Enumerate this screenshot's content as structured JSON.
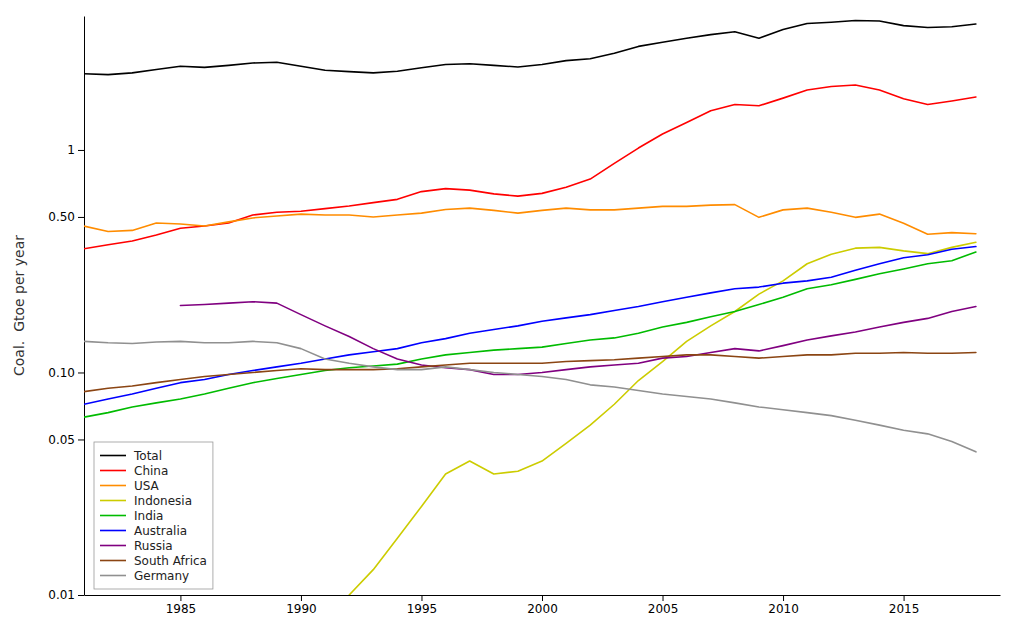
{
  "chart_data": {
    "type": "line",
    "ylabel": "Coal.  Gtoe per year",
    "log": "y",
    "grid": false,
    "legend": "lower left",
    "xlim": [
      1981,
      2019
    ],
    "xticks": [
      1985,
      1990,
      1995,
      2000,
      2005,
      2010,
      2015
    ],
    "ylim": [
      0.01,
      4.0
    ],
    "yticks": [
      0.01,
      0.05,
      {
        "value": 0.1,
        "label": "0.10"
      },
      {
        "value": 0.5,
        "label": "0.50"
      },
      1
    ],
    "x": [
      1981,
      1982,
      1983,
      1984,
      1985,
      1986,
      1987,
      1988,
      1989,
      1990,
      1991,
      1992,
      1993,
      1994,
      1995,
      1996,
      1997,
      1998,
      1999,
      2000,
      2001,
      2002,
      2003,
      2004,
      2005,
      2006,
      2007,
      2008,
      2009,
      2010,
      2011,
      2012,
      2013,
      2014,
      2015,
      2016,
      2017,
      2018
    ],
    "series": [
      {
        "name": "Total",
        "color": "#000000",
        "values": [
          2.2,
          2.18,
          2.22,
          2.3,
          2.38,
          2.35,
          2.4,
          2.46,
          2.48,
          2.38,
          2.28,
          2.25,
          2.22,
          2.26,
          2.34,
          2.42,
          2.44,
          2.4,
          2.36,
          2.42,
          2.52,
          2.57,
          2.72,
          2.92,
          3.05,
          3.18,
          3.3,
          3.4,
          3.18,
          3.48,
          3.7,
          3.75,
          3.82,
          3.8,
          3.62,
          3.55,
          3.58,
          3.68
        ]
      },
      {
        "name": "China",
        "color": "#ff0000",
        "values": [
          0.36,
          0.375,
          0.39,
          0.415,
          0.445,
          0.455,
          0.47,
          0.51,
          0.525,
          0.53,
          0.545,
          0.56,
          0.58,
          0.6,
          0.65,
          0.67,
          0.66,
          0.635,
          0.62,
          0.638,
          0.68,
          0.74,
          0.87,
          1.02,
          1.18,
          1.33,
          1.5,
          1.6,
          1.58,
          1.71,
          1.86,
          1.93,
          1.96,
          1.86,
          1.7,
          1.6,
          1.66,
          1.73
        ]
      },
      {
        "name": "USA",
        "color": "#ff8c00",
        "values": [
          0.455,
          0.43,
          0.435,
          0.47,
          0.465,
          0.455,
          0.475,
          0.495,
          0.505,
          0.515,
          0.51,
          0.51,
          0.5,
          0.51,
          0.52,
          0.54,
          0.548,
          0.535,
          0.52,
          0.535,
          0.548,
          0.538,
          0.538,
          0.548,
          0.558,
          0.558,
          0.565,
          0.568,
          0.498,
          0.538,
          0.548,
          0.525,
          0.498,
          0.515,
          0.468,
          0.418,
          0.425,
          0.42
        ]
      },
      {
        "name": "Indonesia",
        "color": "#cccc00",
        "values": [
          null,
          null,
          null,
          null,
          null,
          null,
          null,
          null,
          null,
          null,
          null,
          0.01,
          0.013,
          0.018,
          0.025,
          0.035,
          0.04,
          0.035,
          0.036,
          0.04,
          0.048,
          0.058,
          0.072,
          0.092,
          0.112,
          0.138,
          0.162,
          0.188,
          0.225,
          0.258,
          0.308,
          0.34,
          0.362,
          0.365,
          0.352,
          0.342,
          0.365,
          0.385
        ]
      },
      {
        "name": "India",
        "color": "#00bb00",
        "values": [
          0.063,
          0.066,
          0.07,
          0.073,
          0.076,
          0.08,
          0.085,
          0.09,
          0.094,
          0.098,
          0.102,
          0.105,
          0.107,
          0.109,
          0.115,
          0.12,
          0.123,
          0.126,
          0.128,
          0.13,
          0.135,
          0.14,
          0.143,
          0.15,
          0.16,
          0.168,
          0.178,
          0.188,
          0.202,
          0.218,
          0.238,
          0.248,
          0.262,
          0.278,
          0.292,
          0.308,
          0.318,
          0.348
        ]
      },
      {
        "name": "Australia",
        "color": "#0000ff",
        "values": [
          0.072,
          0.076,
          0.08,
          0.085,
          0.09,
          0.093,
          0.098,
          0.102,
          0.106,
          0.11,
          0.115,
          0.12,
          0.124,
          0.128,
          0.136,
          0.142,
          0.15,
          0.156,
          0.162,
          0.17,
          0.176,
          0.182,
          0.19,
          0.198,
          0.208,
          0.218,
          0.228,
          0.238,
          0.242,
          0.252,
          0.258,
          0.268,
          0.288,
          0.308,
          0.328,
          0.338,
          0.358,
          0.368
        ]
      },
      {
        "name": "Russia",
        "color": "#800080",
        "values": [
          null,
          null,
          null,
          null,
          0.2,
          0.202,
          0.205,
          0.208,
          0.205,
          0.182,
          0.162,
          0.145,
          0.128,
          0.115,
          0.108,
          0.105,
          0.103,
          0.098,
          0.098,
          0.1,
          0.103,
          0.106,
          0.108,
          0.11,
          0.116,
          0.118,
          0.123,
          0.128,
          0.125,
          0.132,
          0.14,
          0.146,
          0.152,
          0.16,
          0.168,
          0.175,
          0.188,
          0.198
        ]
      },
      {
        "name": "South Africa",
        "color": "#8B4513",
        "values": [
          0.082,
          0.085,
          0.087,
          0.09,
          0.093,
          0.096,
          0.098,
          0.1,
          0.102,
          0.104,
          0.103,
          0.103,
          0.103,
          0.104,
          0.106,
          0.108,
          0.11,
          0.11,
          0.11,
          0.11,
          0.112,
          0.113,
          0.114,
          0.116,
          0.118,
          0.12,
          0.12,
          0.118,
          0.116,
          0.118,
          0.12,
          0.12,
          0.122,
          0.122,
          0.123,
          0.122,
          0.122,
          0.123
        ]
      },
      {
        "name": "Germany",
        "color": "#909090",
        "values": [
          0.138,
          0.136,
          0.135,
          0.137,
          0.138,
          0.136,
          0.136,
          0.138,
          0.136,
          0.128,
          0.115,
          0.11,
          0.106,
          0.103,
          0.103,
          0.106,
          0.103,
          0.1,
          0.098,
          0.096,
          0.093,
          0.088,
          0.086,
          0.083,
          0.08,
          0.078,
          0.076,
          0.073,
          0.07,
          0.068,
          0.066,
          0.064,
          0.061,
          0.058,
          0.055,
          0.053,
          0.049,
          0.044
        ]
      }
    ]
  }
}
